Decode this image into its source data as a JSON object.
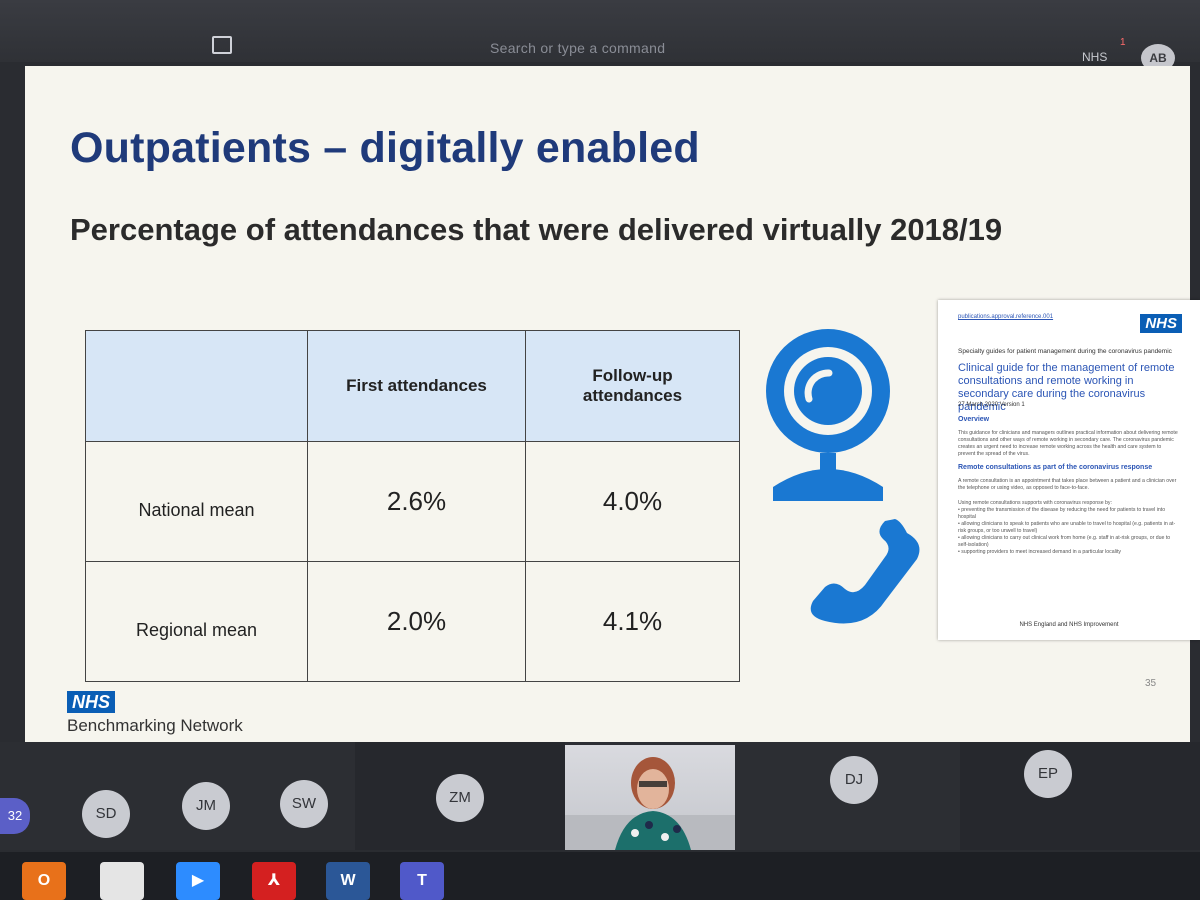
{
  "topbar": {
    "search_placeholder": "Search or type a command",
    "org_label": "NHS",
    "notification_count": "1",
    "avatar_initials": "AB"
  },
  "slide": {
    "title": "Outpatients – digitally enabled",
    "subtitle": "Percentage of attendances that were delivered virtually 2018/19",
    "table": {
      "headers": [
        "",
        "First attendances",
        "Follow-up attendances"
      ],
      "rows": [
        {
          "label": "National mean",
          "first": "2.6%",
          "followup": "4.0%"
        },
        {
          "label": "Regional mean",
          "first": "2.0%",
          "followup": "4.1%"
        }
      ]
    },
    "document": {
      "logo": "NHS",
      "line1": "Specialty guides for patient management during the coronavirus pandemic",
      "title": "Clinical guide for the management of remote consultations and remote working in secondary care during the coronavirus pandemic",
      "date": "27 March 2020 Version 1",
      "overview_heading": "Overview",
      "remote_heading": "Remote consultations as part of the coronavirus response",
      "footer": "NHS England and NHS Improvement"
    },
    "slide_number": "35",
    "logo": {
      "mark": "NHS",
      "name": "Benchmarking Network"
    }
  },
  "participants": {
    "overflow_count": "32",
    "people": [
      "SD",
      "JM",
      "SW",
      "ZM",
      "DJ",
      "EP"
    ]
  },
  "colors": {
    "title_blue": "#1f3a7a",
    "nhs_blue": "#0a5eb5",
    "icon_blue": "#1a78d2",
    "header_fill": "#d7e6f6"
  }
}
